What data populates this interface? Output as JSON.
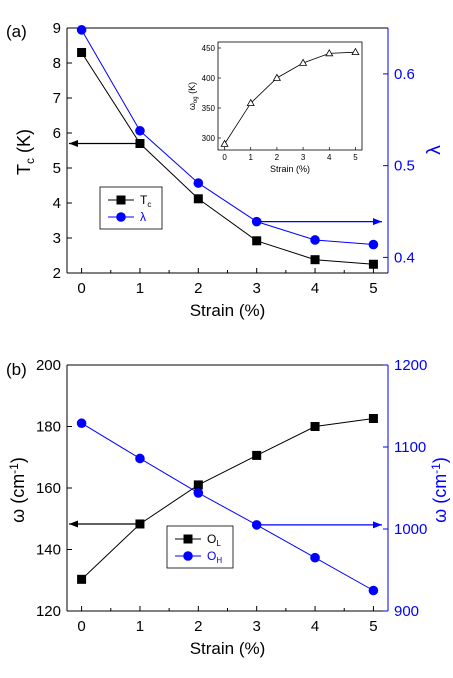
{
  "colors": {
    "black": "#000000",
    "blue": "#0000ff"
  },
  "chart_data": [
    {
      "panel": "(a)",
      "type": "line",
      "x": [
        0,
        1,
        2,
        3,
        4,
        5
      ],
      "xlabel": "Strain (%)",
      "xticks": [
        "0",
        "1",
        "2",
        "3",
        "4",
        "5"
      ],
      "xlim": [
        -0.25,
        5.25
      ],
      "ylim_left": [
        2,
        9
      ],
      "yticks_left": [
        "2",
        "3",
        "4",
        "5",
        "6",
        "7",
        "8",
        "9"
      ],
      "ylabel_left": {
        "main": "T",
        "sub": "c",
        "rest": " (K)"
      },
      "ylim_right": [
        0.383,
        0.65
      ],
      "yticks_right": [
        "0.4",
        "0.5",
        "0.6"
      ],
      "ylabel_right": "λ",
      "series": [
        {
          "name": "T",
          "name_sub": "c",
          "axis": "left",
          "marker": "square",
          "color": "#000000",
          "values": [
            8.3,
            5.7,
            4.12,
            2.92,
            2.38,
            2.25
          ]
        },
        {
          "name": "λ",
          "name_sub": "",
          "axis": "right",
          "marker": "circle",
          "color": "#0000ff",
          "values": [
            0.648,
            0.538,
            0.481,
            0.439,
            0.419,
            0.414
          ]
        }
      ],
      "legend": "middle-left",
      "inset": {
        "type": "line",
        "x": [
          0,
          1,
          2,
          3,
          4,
          5
        ],
        "values": [
          290,
          358,
          400,
          425,
          441,
          443
        ],
        "marker": "open-triangle",
        "xlabel": "Strain (%)",
        "xticks": [
          "0",
          "1",
          "2",
          "3",
          "4",
          "5"
        ],
        "xlim": [
          -0.25,
          5.25
        ],
        "ylim": [
          280,
          460
        ],
        "yticks": [
          "300",
          "350",
          "400",
          "450"
        ],
        "ylabel": {
          "main": "ω",
          "sub": "og",
          "rest": " (K)"
        }
      }
    },
    {
      "panel": "(b)",
      "type": "line",
      "x": [
        0,
        1,
        2,
        3,
        4,
        5
      ],
      "xlabel": "Strain (%)",
      "xticks": [
        "0",
        "1",
        "2",
        "3",
        "4",
        "5"
      ],
      "xlim": [
        -0.25,
        5.25
      ],
      "ylim_left": [
        120,
        200
      ],
      "yticks_left": [
        "120",
        "140",
        "160",
        "180",
        "200"
      ],
      "ylabel_left": {
        "main": "ω",
        "rest": " (cm",
        "sup": "-1",
        "close": ")"
      },
      "ylim_right": [
        900,
        1200
      ],
      "yticks_right": [
        "900",
        "1000",
        "1100",
        "1200"
      ],
      "ylabel_right": {
        "main": "ω",
        "rest": " (cm",
        "sup": "-1",
        "close": ")"
      },
      "series": [
        {
          "name": "O",
          "name_sub": "L",
          "axis": "left",
          "marker": "square",
          "color": "#000000",
          "values": [
            130.3,
            148.3,
            161,
            170.6,
            180,
            182.6
          ]
        },
        {
          "name": "O",
          "name_sub": "H",
          "axis": "right",
          "marker": "circle",
          "color": "#0000ff",
          "values": [
            1129,
            1086,
            1044,
            1005,
            965,
            925
          ]
        }
      ],
      "legend": "lower-center"
    }
  ]
}
